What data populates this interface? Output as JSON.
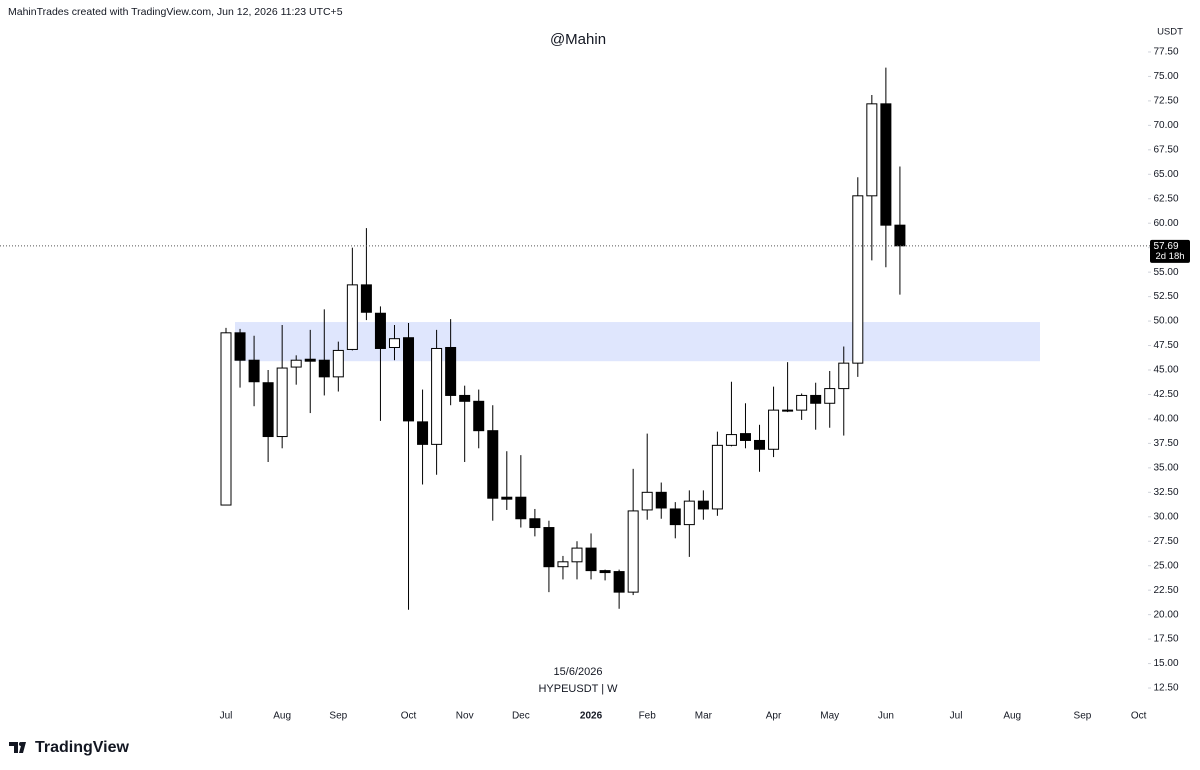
{
  "header": "MahinTrades created with TradingView.com, Jun 12, 2026 11:23 UTC+5",
  "branding": "TradingView",
  "chart_data": {
    "type": "candlestick",
    "title": "@Mahin",
    "y_axis_label": "USDT",
    "date_label": "15/6/2026",
    "symbol_label": "HYPEUSDT | W",
    "last_price": 57.69,
    "countdown": "2d 18h",
    "zone": {
      "low": 45.9,
      "high": 49.9,
      "color": "#dfe6fd"
    },
    "up_color": "#ffffff",
    "down_color": "#000000",
    "categories": [
      "Jul",
      null,
      null,
      null,
      "Aug",
      null,
      null,
      null,
      "Sep",
      null,
      null,
      null,
      null,
      "Oct",
      null,
      null,
      null,
      "Nov",
      null,
      null,
      null,
      "Dec",
      null,
      null,
      null,
      null,
      "2026",
      null,
      null,
      null,
      "Feb",
      null,
      null,
      null,
      "Mar",
      null,
      null,
      null,
      null,
      "Apr",
      null,
      null,
      null,
      "May",
      null,
      null,
      null,
      "Jun",
      null,
      null,
      null,
      null,
      "Jul",
      null,
      null,
      null,
      "Aug",
      null,
      null,
      null,
      null,
      "Sep",
      null,
      null,
      null,
      "Oct"
    ],
    "open": [
      31.2,
      48.8,
      46.0,
      43.7,
      38.2,
      45.3,
      46.1,
      46.0,
      44.3,
      47.1,
      53.7,
      50.8,
      47.3,
      48.3,
      39.7,
      37.4,
      47.3,
      42.4,
      41.8,
      38.8,
      32.0,
      32.0,
      29.8,
      28.9,
      24.9,
      25.4,
      26.8,
      24.5,
      24.4,
      22.3,
      30.7,
      32.5,
      30.8,
      29.2,
      31.6,
      30.8,
      37.3,
      38.5,
      37.8,
      36.9,
      40.9,
      40.9,
      42.4,
      41.6,
      43.1,
      45.7,
      62.8,
      72.2,
      59.8,
      null,
      null,
      null,
      null,
      null,
      null,
      null,
      null,
      null,
      null,
      null,
      null,
      null,
      null,
      null,
      null,
      null
    ],
    "high": [
      49.3,
      49.2,
      48.5,
      45.0,
      49.6,
      46.5,
      49.1,
      51.2,
      47.9,
      57.5,
      59.5,
      51.5,
      49.6,
      49.8,
      43.0,
      49.1,
      50.2,
      43.4,
      43.0,
      41.4,
      36.7,
      36.3,
      30.8,
      29.6,
      26.0,
      27.5,
      28.3,
      24.6,
      24.6,
      34.9,
      38.5,
      33.5,
      31.5,
      32.7,
      32.7,
      38.7,
      43.8,
      41.6,
      39.4,
      43.3,
      45.8,
      42.6,
      43.7,
      44.9,
      47.4,
      64.7,
      73.1,
      75.9,
      65.8,
      null,
      null,
      null,
      null,
      null,
      null,
      null,
      null,
      null,
      null,
      null,
      null,
      null,
      null,
      null,
      null,
      null
    ],
    "low": [
      31.2,
      43.2,
      41.3,
      35.6,
      37.0,
      43.5,
      40.6,
      42.4,
      42.8,
      47.0,
      50.1,
      39.8,
      46.0,
      20.5,
      33.3,
      34.3,
      41.4,
      35.6,
      37.0,
      29.6,
      30.7,
      28.9,
      28.0,
      22.3,
      23.6,
      23.6,
      23.6,
      23.5,
      20.6,
      22.0,
      29.7,
      29.8,
      27.8,
      25.9,
      29.7,
      30.1,
      37.2,
      37.0,
      34.6,
      36.1,
      40.7,
      39.9,
      38.9,
      39.1,
      38.3,
      44.3,
      56.2,
      55.5,
      52.7,
      null,
      null,
      null,
      null,
      null,
      null,
      null,
      null,
      null,
      null,
      null,
      null,
      null,
      null,
      null,
      null,
      null
    ],
    "close": [
      48.8,
      46.0,
      43.8,
      38.2,
      45.2,
      46.0,
      45.9,
      44.3,
      47.0,
      53.7,
      50.9,
      47.2,
      48.2,
      39.8,
      37.4,
      47.2,
      42.4,
      41.8,
      38.8,
      31.9,
      31.8,
      29.8,
      28.9,
      24.9,
      25.4,
      26.8,
      24.5,
      24.3,
      22.3,
      30.6,
      32.5,
      30.9,
      29.2,
      31.6,
      30.8,
      37.3,
      38.4,
      37.8,
      36.9,
      40.9,
      40.8,
      42.4,
      41.6,
      43.1,
      45.7,
      62.8,
      72.2,
      59.8,
      57.69,
      null,
      null,
      null,
      null,
      null,
      null,
      null,
      null,
      null,
      null,
      null,
      null,
      null,
      null,
      null,
      null,
      null
    ],
    "ylim": [
      10,
      80
    ],
    "yticks": [
      {
        "value": 12.5,
        "label": "12.50"
      },
      {
        "value": 15,
        "label": "15.00"
      },
      {
        "value": 17.5,
        "label": "17.50"
      },
      {
        "value": 20,
        "label": "20.00"
      },
      {
        "value": 22.5,
        "label": "22.50"
      },
      {
        "value": 25,
        "label": "25.00"
      },
      {
        "value": 27.5,
        "label": "27.50"
      },
      {
        "value": 30,
        "label": "30.00"
      },
      {
        "value": 32.5,
        "label": "32.50"
      },
      {
        "value": 35,
        "label": "35.00"
      },
      {
        "value": 37.5,
        "label": "37.50"
      },
      {
        "value": 40,
        "label": "40.00"
      },
      {
        "value": 42.5,
        "label": "42.50"
      },
      {
        "value": 45,
        "label": "45.00"
      },
      {
        "value": 47.5,
        "label": "47.50"
      },
      {
        "value": 50,
        "label": "50.00"
      },
      {
        "value": 52.5,
        "label": "52.50"
      },
      {
        "value": 55,
        "label": "55.00"
      },
      {
        "value": 57.5,
        "label": "57.50"
      },
      {
        "value": 60,
        "label": "60.00"
      },
      {
        "value": 62.5,
        "label": "62.50"
      },
      {
        "value": 65,
        "label": "65.00"
      },
      {
        "value": 67.5,
        "label": "67.50"
      },
      {
        "value": 70,
        "label": "70.00"
      },
      {
        "value": 72.5,
        "label": "72.50"
      },
      {
        "value": 75,
        "label": "75.00"
      },
      {
        "value": 77.5,
        "label": "77.50"
      }
    ],
    "grid": false
  }
}
